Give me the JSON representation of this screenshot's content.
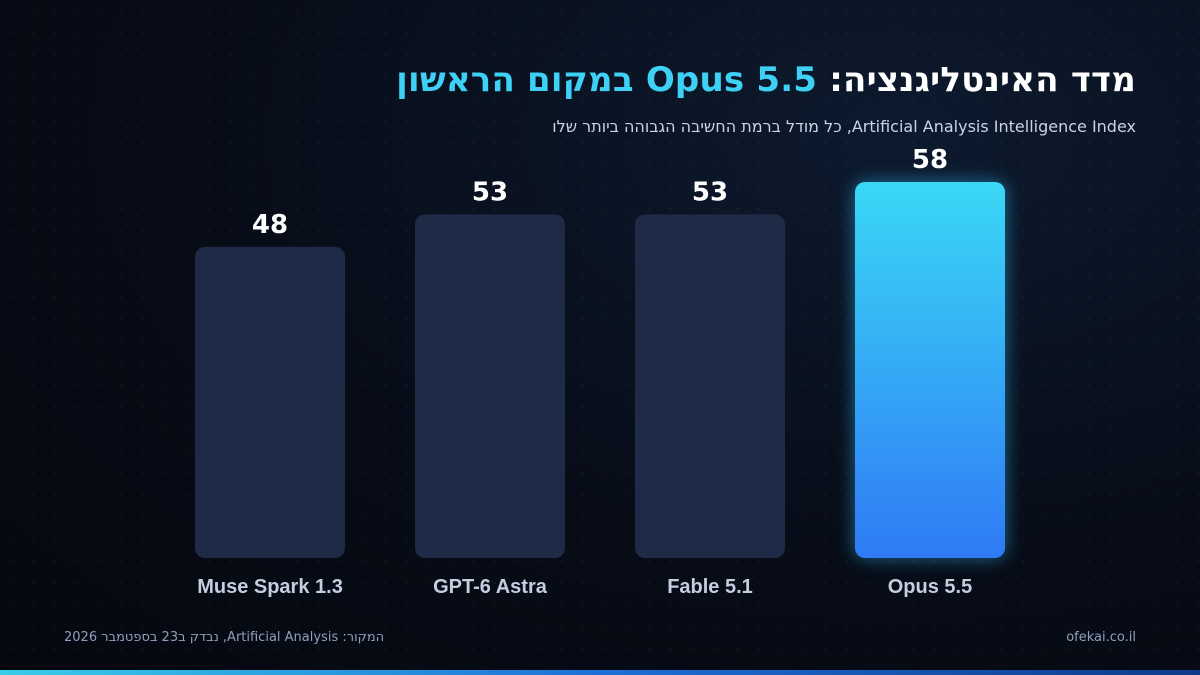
{
  "header": {
    "title_main": "מדד האינטליגנציה:",
    "title_highlight": "Opus 5.5 במקום הראשון",
    "subtitle": "Artificial Analysis Intelligence Index, כל מודל ברמת החשיבה הגבוהה ביותר שלו"
  },
  "chart_data": {
    "type": "bar",
    "categories": [
      "Muse Spark 1.3",
      "GPT-6 Astra",
      "Fable 5.1",
      "Opus 5.5"
    ],
    "values": [
      48,
      53,
      53,
      58
    ],
    "highlight_index": 3,
    "ylim": [
      0,
      58
    ],
    "grid": false,
    "xlabel": "",
    "ylabel": ""
  },
  "colors": {
    "bar": "#1f2b46",
    "highlight_top": "#3ad8f5",
    "highlight_bottom": "#2f7af5",
    "accent": "#3fd0f5"
  },
  "footer": {
    "source": "המקור: Artificial Analysis, נבדק ב23 בספטמבר 2026",
    "site": "ofekai.co.il"
  }
}
